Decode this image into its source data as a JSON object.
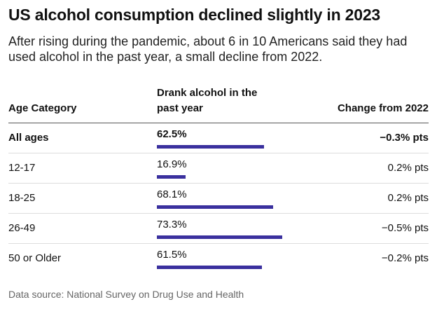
{
  "chart_data": {
    "type": "bar",
    "title": "US alcohol consumption declined slightly in 2023",
    "subtitle": "After rising during the pandemic, about 6 in 10 Americans said they had used alcohol in the past year, a small decline from 2022.",
    "columns": [
      "Age Category",
      "Drank alcohol in the past year",
      "Change from 2022"
    ],
    "categories": [
      "All ages",
      "12-17",
      "18-25",
      "26-49",
      "50 or Older"
    ],
    "values": [
      62.5,
      16.9,
      68.1,
      73.3,
      61.5
    ],
    "value_labels": [
      "62.5%",
      "16.9%",
      "68.1%",
      "73.3%",
      "61.5%"
    ],
    "changes": [
      "−0.3% pts",
      "0.2% pts",
      "0.2% pts",
      "−0.5% pts",
      "−0.2% pts"
    ],
    "color": "#3a309e",
    "xlim": [
      0,
      100
    ],
    "source": "Data source: National Survey on Drug Use and Health"
  }
}
